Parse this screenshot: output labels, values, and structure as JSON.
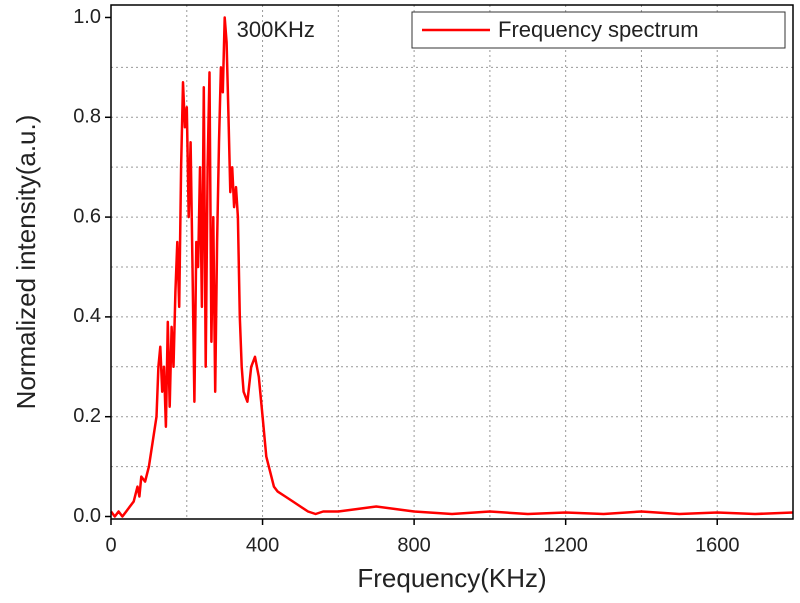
{
  "chart_data": {
    "type": "line",
    "x_label": "Frequency(KHz)",
    "y_label": "Normalized intensity(a.u.)",
    "annotation": "300KHz",
    "annotation_x": 300,
    "xlim": [
      0,
      1800
    ],
    "ylim": [
      -0.005,
      1.025
    ],
    "xticks": [
      0,
      400,
      800,
      1200,
      1600
    ],
    "yticks": [
      {
        "value": 0,
        "label": "0.0"
      },
      0.2,
      0.4,
      0.6,
      0.8,
      {
        "value": 1,
        "label": "1.0"
      }
    ],
    "xgrid": [
      200,
      400,
      600,
      800,
      1000,
      1200,
      1400,
      1600
    ],
    "ygrid": [
      0.1,
      0.2,
      0.3,
      0.4,
      0.5,
      0.6,
      0.7,
      0.8,
      0.9
    ],
    "grid": true,
    "legend": "upper right",
    "series": [
      {
        "name": "Frequency spectrum",
        "color": "#ff0000",
        "x": [
          0,
          10,
          20,
          30,
          40,
          50,
          60,
          70,
          75,
          80,
          90,
          100,
          110,
          120,
          125,
          130,
          135,
          140,
          145,
          150,
          155,
          160,
          165,
          170,
          175,
          180,
          185,
          190,
          195,
          200,
          205,
          210,
          215,
          220,
          225,
          230,
          235,
          240,
          245,
          250,
          255,
          260,
          265,
          270,
          275,
          280,
          285,
          290,
          295,
          300,
          305,
          310,
          315,
          320,
          325,
          330,
          335,
          340,
          345,
          350,
          360,
          370,
          380,
          390,
          400,
          410,
          420,
          430,
          440,
          460,
          480,
          500,
          520,
          540,
          560,
          600,
          650,
          700,
          750,
          800,
          900,
          1000,
          1100,
          1200,
          1300,
          1400,
          1500,
          1600,
          1700,
          1800
        ],
        "values": [
          0.01,
          0,
          0.01,
          0,
          0.01,
          0.02,
          0.03,
          0.06,
          0.04,
          0.08,
          0.07,
          0.1,
          0.15,
          0.2,
          0.3,
          0.34,
          0.25,
          0.3,
          0.18,
          0.39,
          0.22,
          0.38,
          0.3,
          0.45,
          0.55,
          0.42,
          0.7,
          0.87,
          0.78,
          0.82,
          0.6,
          0.75,
          0.5,
          0.23,
          0.55,
          0.5,
          0.7,
          0.42,
          0.86,
          0.3,
          0.7,
          0.89,
          0.35,
          0.6,
          0.25,
          0.55,
          0.75,
          0.9,
          0.85,
          1.0,
          0.95,
          0.8,
          0.65,
          0.7,
          0.62,
          0.66,
          0.6,
          0.4,
          0.3,
          0.25,
          0.23,
          0.3,
          0.32,
          0.28,
          0.2,
          0.12,
          0.09,
          0.06,
          0.05,
          0.04,
          0.03,
          0.02,
          0.01,
          0.005,
          0.01,
          0.01,
          0.015,
          0.02,
          0.015,
          0.01,
          0.005,
          0.01,
          0.005,
          0.008,
          0.005,
          0.01,
          0.005,
          0.008,
          0.005,
          0.008
        ]
      }
    ]
  }
}
